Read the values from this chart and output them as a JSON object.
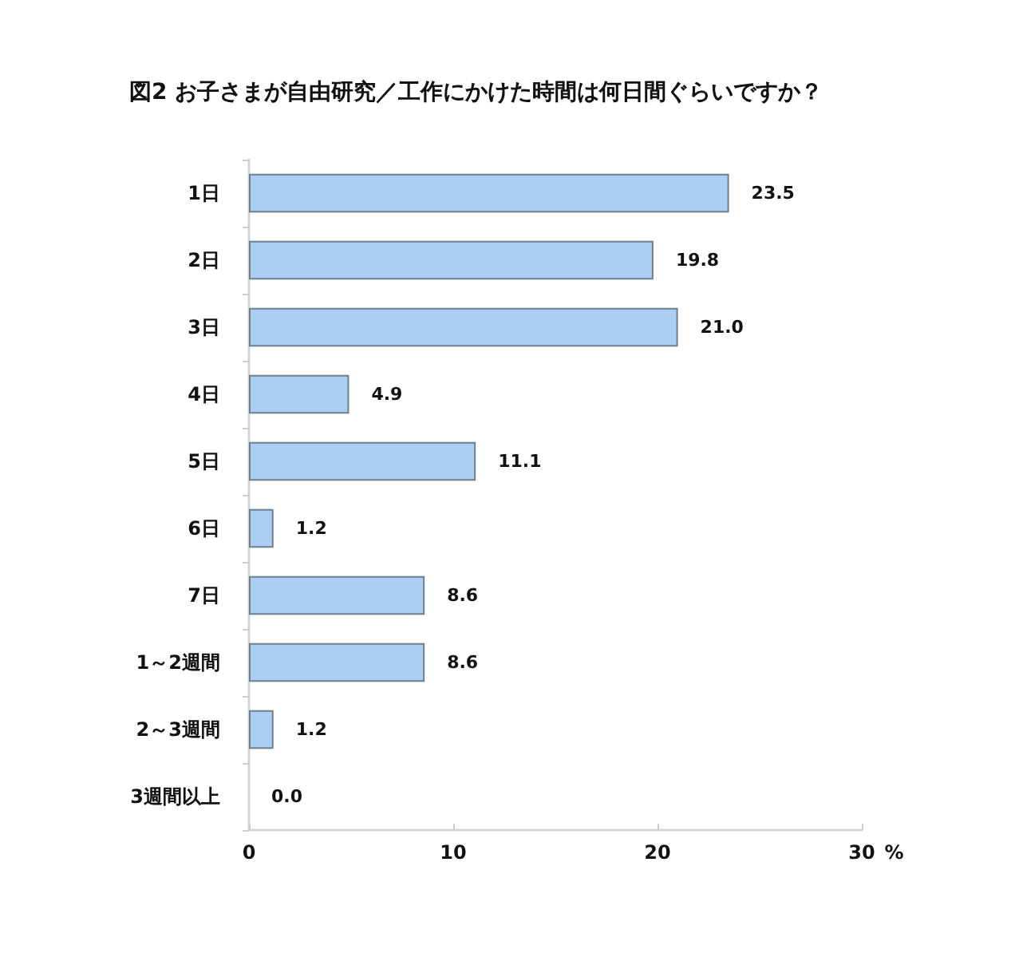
{
  "chart_data": {
    "type": "bar",
    "orientation": "horizontal",
    "title": "図2 お子さまが自由研究／工作にかけた時間は何日間ぐらいですか？",
    "xlabel": "%",
    "categories": [
      "1日",
      "2日",
      "3日",
      "4日",
      "5日",
      "6日",
      "7日",
      "1～2週間",
      "2～3週間",
      "3週間以上"
    ],
    "values": [
      23.5,
      19.8,
      21.0,
      4.9,
      11.1,
      1.2,
      8.6,
      8.6,
      1.2,
      0.0
    ],
    "value_labels": [
      "23.5",
      "19.8",
      "21.0",
      "4.9",
      "11.1",
      "1.2",
      "8.6",
      "8.6",
      "1.2",
      "0.0"
    ],
    "color": "#a9d0f2",
    "xlim": [
      0,
      30
    ],
    "xticks": [
      0,
      10,
      20,
      30
    ]
  }
}
